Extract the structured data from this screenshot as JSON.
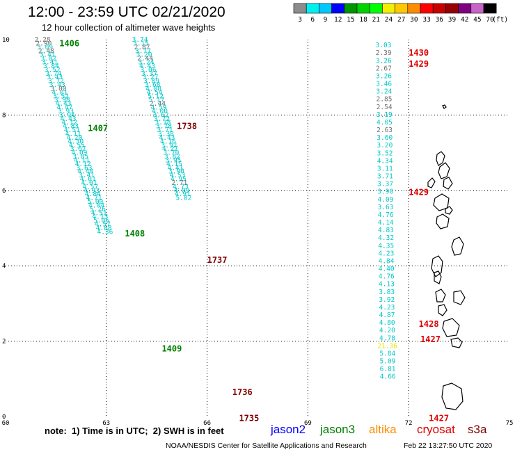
{
  "title": "12:00 - 23:59 UTC 02/21/2020",
  "subtitle": "12 hour collection of altimeter wave heights",
  "color_scale": {
    "unit": "(ft)",
    "labels": [
      "3",
      "6",
      "9",
      "12",
      "15",
      "18",
      "21",
      "24",
      "27",
      "30",
      "33",
      "36",
      "39",
      "42",
      "45",
      "70"
    ],
    "colors": [
      "#8c8c8c",
      "#00f0f0",
      "#00c8ff",
      "#0000ff",
      "#009600",
      "#00d200",
      "#00ff00",
      "#f0f000",
      "#ffc800",
      "#ff8c00",
      "#ff0000",
      "#c80000",
      "#960000",
      "#800080",
      "#c864c8",
      "#000000"
    ]
  },
  "axes": {
    "x_ticks": [
      "60",
      "63",
      "66",
      "69",
      "72",
      "75"
    ],
    "y_ticks": [
      "0",
      "2",
      "4",
      "6",
      "8",
      "10"
    ],
    "xlim": [
      60,
      75
    ],
    "ylim": [
      0,
      10
    ]
  },
  "tracks": [
    {
      "x0": 61.1,
      "y0": 10.0,
      "dx": 0.0365,
      "dy": -0.1,
      "values": [
        {
          "v": "2.28",
          "c": "#6e6e6e"
        },
        {
          "v": "2.90",
          "c": "#6e6e6e"
        },
        {
          "v": "3.09",
          "c": "#00c8c8"
        },
        {
          "v": "2.48",
          "c": "#6e6e6e"
        },
        {
          "v": "3.41",
          "c": "#00c8c8"
        },
        {
          "v": "3.02",
          "c": "#00c8c8"
        },
        {
          "v": "3.41",
          "c": "#00c8c8"
        },
        {
          "v": "3.84",
          "c": "#00c8c8"
        },
        {
          "v": "3.52",
          "c": "#00c8c8"
        },
        {
          "v": "3.74",
          "c": "#00c8c8"
        },
        {
          "v": "3.43",
          "c": "#00c8c8"
        },
        {
          "v": "3.72",
          "c": "#00c8c8"
        },
        {
          "v": "3.43",
          "c": "#00c8c8"
        },
        {
          "v": "3.00",
          "c": "#6e6e6e"
        },
        {
          "v": "4.01",
          "c": "#00c8c8"
        },
        {
          "v": "3.52",
          "c": "#00c8c8"
        },
        {
          "v": "3.98",
          "c": "#00c8c8"
        },
        {
          "v": "4.43",
          "c": "#00c8c8"
        },
        {
          "v": "4.47",
          "c": "#00c8c8"
        },
        {
          "v": "3.93",
          "c": "#00c8c8"
        },
        {
          "v": "3.94",
          "c": "#00c8c8"
        },
        {
          "v": "4.43",
          "c": "#00c8c8"
        },
        {
          "v": "4.12",
          "c": "#00c8c8"
        },
        {
          "v": "4.83",
          "c": "#00c8c8"
        },
        {
          "v": "4.51",
          "c": "#00c8c8"
        },
        {
          "v": "4.11",
          "c": "#00c8c8"
        },
        {
          "v": "4.20",
          "c": "#00c8c8"
        },
        {
          "v": "4.30",
          "c": "#00c8c8"
        },
        {
          "v": "4.55",
          "c": "#00c8c8"
        },
        {
          "v": "3.67",
          "c": "#00c8c8"
        },
        {
          "v": "4.09",
          "c": "#00c8c8"
        },
        {
          "v": "3.85",
          "c": "#00c8c8"
        },
        {
          "v": "4.11",
          "c": "#00c8c8"
        },
        {
          "v": "4.12",
          "c": "#00c8c8"
        },
        {
          "v": "3.63",
          "c": "#00c8c8"
        },
        {
          "v": "4.40",
          "c": "#00c8c8"
        },
        {
          "v": "3.41",
          "c": "#00c8c8"
        },
        {
          "v": "4.01",
          "c": "#00c8c8"
        },
        {
          "v": "4.01",
          "c": "#00c8c8"
        },
        {
          "v": "4.57",
          "c": "#00c8c8"
        },
        {
          "v": "4.93",
          "c": "#00c8c8"
        },
        {
          "v": "4.84",
          "c": "#00c8c8"
        },
        {
          "v": "4.71",
          "c": "#00c8c8"
        },
        {
          "v": "5.00",
          "c": "#00c8c8"
        },
        {
          "v": "4.04",
          "c": "#00c8c8"
        },
        {
          "v": "5.26",
          "c": "#00c8c8"
        },
        {
          "v": "4.51",
          "c": "#00c8c8"
        },
        {
          "v": "4.13",
          "c": "#00c8c8"
        },
        {
          "v": "5.06",
          "c": "#00c8c8"
        },
        {
          "v": "4.57",
          "c": "#00c8c8"
        },
        {
          "v": "4.88",
          "c": "#00c8c8"
        },
        {
          "v": "4.36",
          "c": "#00c8c8"
        }
      ]
    },
    {
      "x0": 64.0,
      "y0": 10.0,
      "dx": 0.031,
      "dy": -0.1,
      "values": [
        {
          "v": "3.74",
          "c": "#00c8c8"
        },
        {
          "v": "3.15",
          "c": "#00c8c8"
        },
        {
          "v": "2.87",
          "c": "#6e6e6e"
        },
        {
          "v": "3.77",
          "c": "#00c8c8"
        },
        {
          "v": "3.20",
          "c": "#00c8c8"
        },
        {
          "v": "2.44",
          "c": "#6e6e6e"
        },
        {
          "v": "3.24",
          "c": "#00c8c8"
        },
        {
          "v": "4.43",
          "c": "#00c8c8"
        },
        {
          "v": "3.06",
          "c": "#00c8c8"
        },
        {
          "v": "3.37",
          "c": "#00c8c8"
        },
        {
          "v": "3.27",
          "c": "#00c8c8"
        },
        {
          "v": "3.89",
          "c": "#00c8c8"
        },
        {
          "v": "3.68",
          "c": "#00c8c8"
        },
        {
          "v": "4.08",
          "c": "#00c8c8"
        },
        {
          "v": "4.54",
          "c": "#00c8c8"
        },
        {
          "v": "5.12",
          "c": "#00c8c8"
        },
        {
          "v": "5.17",
          "c": "#00c8c8"
        },
        {
          "v": "2.44",
          "c": "#6e6e6e"
        },
        {
          "v": "4.59",
          "c": "#00c8c8"
        },
        {
          "v": "4.00",
          "c": "#00c8c8"
        },
        {
          "v": "3.62",
          "c": "#00c8c8"
        },
        {
          "v": "3.72",
          "c": "#00c8c8"
        },
        {
          "v": "3.18",
          "c": "#00c8c8"
        },
        {
          "v": "3.78",
          "c": "#00c8c8"
        },
        {
          "v": "3.71",
          "c": "#00c8c8"
        },
        {
          "v": "3.38",
          "c": "#00c8c8"
        },
        {
          "v": "4.43",
          "c": "#00c8c8"
        },
        {
          "v": "4.16",
          "c": "#00c8c8"
        },
        {
          "v": "3.92",
          "c": "#00c8c8"
        },
        {
          "v": "4.27",
          "c": "#00c8c8"
        },
        {
          "v": "3.70",
          "c": "#00c8c8"
        },
        {
          "v": "3.82",
          "c": "#00c8c8"
        },
        {
          "v": "3.95",
          "c": "#00c8c8"
        },
        {
          "v": "4.15",
          "c": "#00c8c8"
        },
        {
          "v": "4.41",
          "c": "#00c8c8"
        },
        {
          "v": "3.90",
          "c": "#00c8c8"
        },
        {
          "v": "4.53",
          "c": "#00c8c8"
        },
        {
          "v": "4.95",
          "c": "#00c8c8"
        },
        {
          "v": "2.71",
          "c": "#6e6e6e"
        },
        {
          "v": "4.73",
          "c": "#00c8c8"
        },
        {
          "v": "4.09",
          "c": "#00c8c8"
        },
        {
          "v": "4.91",
          "c": "#00c8c8"
        },
        {
          "v": "5.02",
          "c": "#00c8c8"
        }
      ]
    },
    {
      "x0": 71.25,
      "y0": 9.85,
      "dx": 0.003,
      "dy": -0.2045,
      "values": [
        {
          "v": "3.03",
          "c": "#00c8c8"
        },
        {
          "v": "2.39",
          "c": "#6e6e6e"
        },
        {
          "v": "3.26",
          "c": "#00c8c8"
        },
        {
          "v": "2.67",
          "c": "#6e6e6e"
        },
        {
          "v": "3.26",
          "c": "#00c8c8"
        },
        {
          "v": "3.46",
          "c": "#00c8c8"
        },
        {
          "v": "3.24",
          "c": "#00c8c8"
        },
        {
          "v": "2.85",
          "c": "#6e6e6e"
        },
        {
          "v": "2.54",
          "c": "#6e6e6e"
        },
        {
          "v": "3.19",
          "c": "#00c8c8"
        },
        {
          "v": "4.05",
          "c": "#00c8c8"
        },
        {
          "v": "2.63",
          "c": "#6e6e6e"
        },
        {
          "v": "3.60",
          "c": "#00c8c8"
        },
        {
          "v": "3.20",
          "c": "#00c8c8"
        },
        {
          "v": "3.52",
          "c": "#00c8c8"
        },
        {
          "v": "4.34",
          "c": "#00c8c8"
        },
        {
          "v": "3.11",
          "c": "#00c8c8"
        },
        {
          "v": "3.71",
          "c": "#00c8c8"
        },
        {
          "v": "3.37",
          "c": "#00c8c8"
        },
        {
          "v": "3.90",
          "c": "#00c8c8"
        },
        {
          "v": "4.09",
          "c": "#00c8c8"
        },
        {
          "v": "3.63",
          "c": "#00c8c8"
        },
        {
          "v": "4.76",
          "c": "#00c8c8"
        },
        {
          "v": "4.14",
          "c": "#00c8c8"
        },
        {
          "v": "4.83",
          "c": "#00c8c8"
        },
        {
          "v": "4.32",
          "c": "#00c8c8"
        },
        {
          "v": "4.35",
          "c": "#00c8c8"
        },
        {
          "v": "4.23",
          "c": "#00c8c8"
        },
        {
          "v": "4.84",
          "c": "#00c8c8"
        },
        {
          "v": "4.40",
          "c": "#00c8c8"
        },
        {
          "v": "4.76",
          "c": "#00c8c8"
        },
        {
          "v": "4.13",
          "c": "#00c8c8"
        },
        {
          "v": "3.83",
          "c": "#00c8c8"
        },
        {
          "v": "3.92",
          "c": "#00c8c8"
        },
        {
          "v": "4.23",
          "c": "#00c8c8"
        },
        {
          "v": "4.87",
          "c": "#00c8c8"
        },
        {
          "v": "4.80",
          "c": "#00c8c8"
        },
        {
          "v": "4.20",
          "c": "#00c8c8"
        },
        {
          "v": "4.78",
          "c": "#00c8c8"
        },
        {
          "v": "21.36",
          "c": "#e6e600"
        },
        {
          "v": "5.84",
          "c": "#00c8c8"
        },
        {
          "v": "5.09",
          "c": "#00c8c8"
        },
        {
          "v": "6.81",
          "c": "#00c8c8"
        },
        {
          "v": "4.66",
          "c": "#00c8c8"
        }
      ]
    }
  ],
  "pass_labels": [
    {
      "text": "1406",
      "x": 61.6,
      "y": 9.9,
      "color": "#008000"
    },
    {
      "text": "1407",
      "x": 62.45,
      "y": 7.65,
      "color": "#008000"
    },
    {
      "text": "1408",
      "x": 63.55,
      "y": 4.85,
      "color": "#008000"
    },
    {
      "text": "1409",
      "x": 64.65,
      "y": 1.8,
      "color": "#008000"
    },
    {
      "text": "1738",
      "x": 65.1,
      "y": 7.7,
      "color": "#800000"
    },
    {
      "text": "1737",
      "x": 66.0,
      "y": 4.15,
      "color": "#800000"
    },
    {
      "text": "1736",
      "x": 66.75,
      "y": 0.65,
      "color": "#800000"
    },
    {
      "text": "1735",
      "x": 66.95,
      "y": -0.05,
      "color": "#800000"
    },
    {
      "text": "1430",
      "x": 72.0,
      "y": 9.65,
      "color": "#e00000"
    },
    {
      "text": "1429",
      "x": 72.0,
      "y": 9.35,
      "color": "#e00000"
    },
    {
      "text": "1429",
      "x": 72.0,
      "y": 5.95,
      "color": "#e00000"
    },
    {
      "text": "1428",
      "x": 72.3,
      "y": 2.45,
      "color": "#e00000"
    },
    {
      "text": "1427",
      "x": 72.35,
      "y": 2.05,
      "color": "#e00000"
    },
    {
      "text": "1427",
      "x": 72.6,
      "y": -0.05,
      "color": "#e00000"
    }
  ],
  "note": "note:  1) Time is in UTC;  2) SWH is in feet",
  "missions": [
    {
      "name": "jason2",
      "color": "#0000ff"
    },
    {
      "name": "jason3",
      "color": "#008000"
    },
    {
      "name": "altika",
      "color": "#ff8c00"
    },
    {
      "name": "cryosat",
      "color": "#e00000"
    },
    {
      "name": "s3a",
      "color": "#800000"
    }
  ],
  "credits": "NOAA/NESDIS Center for Satellite Applications and Research",
  "timestamp": "Feb 22 13:27:50 UTC 2020"
}
